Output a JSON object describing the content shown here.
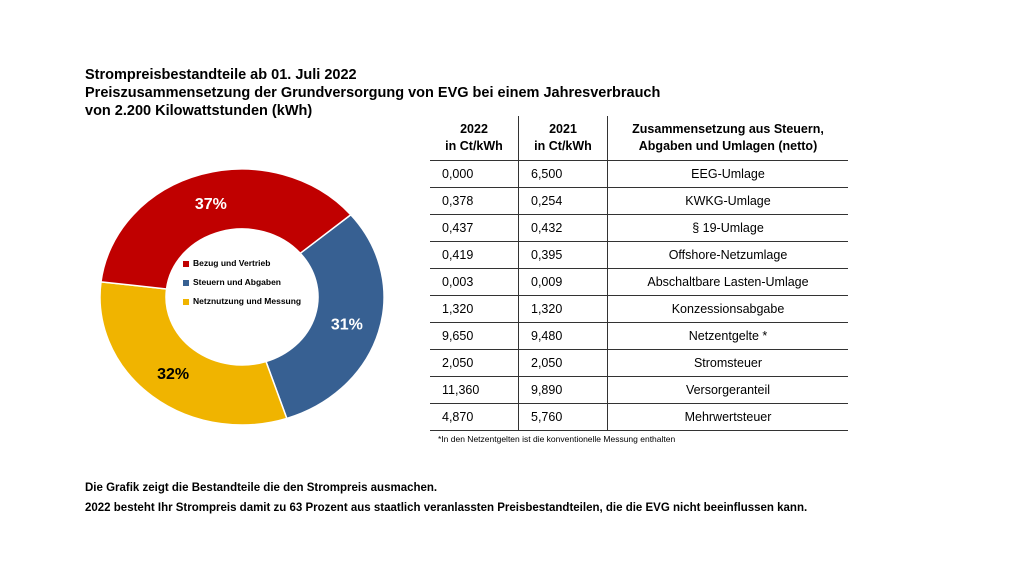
{
  "title": {
    "line1": "Strompreisbestandteile ab 01. Juli 2022",
    "line2": "Preiszusammensetzung der Grundversorgung von EVG bei einem Jahresverbrauch",
    "line3": "von 2.200 Kilowattstunden (kWh)"
  },
  "chart_data": {
    "type": "pie",
    "donut": true,
    "categories": [
      "Steuern und Abgaben",
      "Netznutzung und Messung",
      "Bezug und Vertrieb"
    ],
    "values": [
      31,
      32,
      37
    ],
    "labels": [
      "31%",
      "32%",
      "37%"
    ],
    "colors": [
      "#376092",
      "#F0B400",
      "#C00000"
    ],
    "legend": [
      {
        "name": "Bezug und Vertrieb",
        "color": "#C00000"
      },
      {
        "name": "Steuern und Abgaben",
        "color": "#376092"
      },
      {
        "name": "Netznutzung und Messung",
        "color": "#F0B400"
      }
    ],
    "legend_position": "center"
  },
  "table": {
    "headers": {
      "col1_line1": "2022",
      "col1_line2": "in Ct/kWh",
      "col2_line1": "2021",
      "col2_line2": "in Ct/kWh",
      "col3_line1": "Zusammensetzung aus Steuern,",
      "col3_line2": "Abgaben und Umlagen (netto)"
    },
    "rows": [
      {
        "v2022": "0,000",
        "v2021": "6,500",
        "name": "EEG-Umlage"
      },
      {
        "v2022": "0,378",
        "v2021": "0,254",
        "name": "KWKG-Umlage"
      },
      {
        "v2022": "0,437",
        "v2021": "0,432",
        "name": "§ 19-Umlage"
      },
      {
        "v2022": "0,419",
        "v2021": "0,395",
        "name": "Offshore-Netzumlage"
      },
      {
        "v2022": "0,003",
        "v2021": "0,009",
        "name": "Abschaltbare Lasten-Umlage"
      },
      {
        "v2022": "1,320",
        "v2021": "1,320",
        "name": "Konzessionsabgabe"
      },
      {
        "v2022": "9,650",
        "v2021": "9,480",
        "name": "Netzentgelte *"
      },
      {
        "v2022": "2,050",
        "v2021": "2,050",
        "name": "Stromsteuer"
      },
      {
        "v2022": "11,360",
        "v2021": "9,890",
        "name": "Versorgeranteil"
      },
      {
        "v2022": "4,870",
        "v2021": "5,760",
        "name": "Mehrwertsteuer"
      }
    ],
    "footnote": "*In den Netzentgelten ist die konventionelle  Messung enthalten"
  },
  "bottom": {
    "line1": "Die Grafik zeigt die Bestandteile die den Strompreis ausmachen.",
    "line2": "2022 besteht Ihr Strompreis damit zu 63 Prozent aus staatlich veranlassten Preisbestandteilen,  die die EVG nicht beeinflussen kann."
  }
}
